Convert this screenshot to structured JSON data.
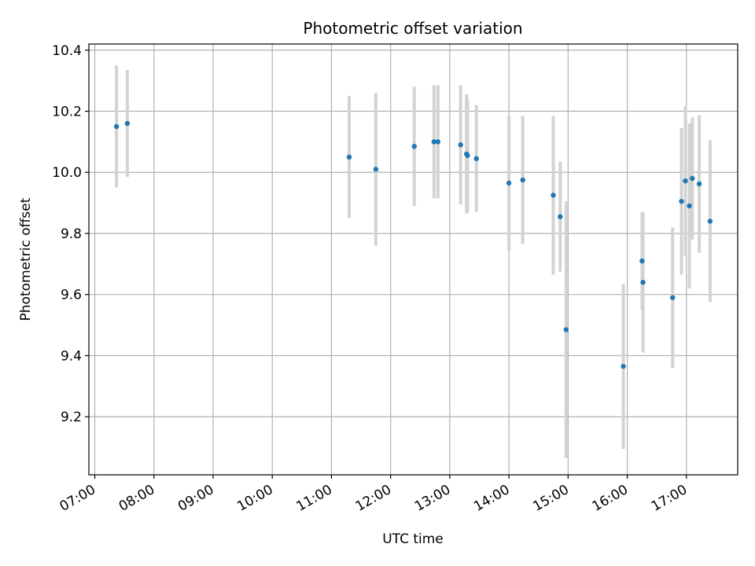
{
  "chart_data": {
    "type": "scatter",
    "title": "Photometric offset variation",
    "xlabel": "UTC time",
    "ylabel": "Photometric offset",
    "x_ticks": [
      "07:00",
      "08:00",
      "09:00",
      "10:00",
      "11:00",
      "12:00",
      "13:00",
      "14:00",
      "15:00",
      "16:00",
      "17:00"
    ],
    "y_ticks": [
      "9.2",
      "9.4",
      "9.6",
      "9.8",
      "10.0",
      "10.2",
      "10.4"
    ],
    "xlim": [
      "06:54",
      "17:52"
    ],
    "ylim": [
      9.01,
      10.42
    ],
    "grid": true,
    "colors": {
      "point": "#1f77b4",
      "errorbar": "#d3d3d3",
      "grid": "#b0b0b0"
    },
    "series": [
      {
        "points": [
          {
            "x": "07:22",
            "y": 10.15,
            "err": 0.2
          },
          {
            "x": "07:33",
            "y": 10.16,
            "err": 0.175
          },
          {
            "x": "11:18",
            "y": 10.05,
            "err": 0.2
          },
          {
            "x": "11:45",
            "y": 10.01,
            "err": 0.25
          },
          {
            "x": "12:24",
            "y": 10.085,
            "err": 0.195
          },
          {
            "x": "12:44",
            "y": 10.1,
            "err": 0.185
          },
          {
            "x": "12:48",
            "y": 10.1,
            "err": 0.185
          },
          {
            "x": "13:11",
            "y": 10.09,
            "err": 0.195
          },
          {
            "x": "13:17",
            "y": 10.06,
            "err": 0.195
          },
          {
            "x": "13:18",
            "y": 10.055,
            "err": 0.185
          },
          {
            "x": "13:27",
            "y": 10.045,
            "err": 0.175
          },
          {
            "x": "14:00",
            "y": 9.965,
            "err": 0.22
          },
          {
            "x": "14:14",
            "y": 9.975,
            "err": 0.21
          },
          {
            "x": "14:45",
            "y": 9.925,
            "err": 0.26
          },
          {
            "x": "14:52",
            "y": 9.855,
            "err": 0.18
          },
          {
            "x": "14:58",
            "y": 9.485,
            "err": 0.42
          },
          {
            "x": "15:56",
            "y": 9.365,
            "err": 0.27
          },
          {
            "x": "16:15",
            "y": 9.71,
            "err": 0.16
          },
          {
            "x": "16:16",
            "y": 9.64,
            "err": 0.23
          },
          {
            "x": "16:46",
            "y": 9.59,
            "err": 0.23
          },
          {
            "x": "16:55",
            "y": 9.905,
            "err": 0.24
          },
          {
            "x": "16:59",
            "y": 9.972,
            "err": 0.245
          },
          {
            "x": "17:03",
            "y": 9.89,
            "err": 0.27
          },
          {
            "x": "17:06",
            "y": 9.98,
            "err": 0.2
          },
          {
            "x": "17:13",
            "y": 9.962,
            "err": 0.225
          },
          {
            "x": "17:24",
            "y": 9.84,
            "err": 0.265
          }
        ]
      }
    ]
  }
}
